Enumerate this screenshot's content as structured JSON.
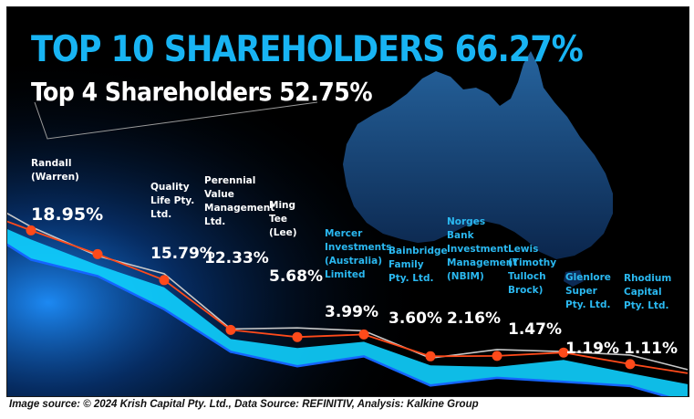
{
  "title": "TOP 10 SHAREHOLDERS 66.27%",
  "subtitle": "Top 4 Shareholders 52.75%",
  "footer": "Image source: © 2024 Krish Capital Pty. Ltd., Data Source: REFINITIV, Analysis: Kalkine Group",
  "colors": {
    "title": "#18b4f3",
    "name_label": "#2ab8f0",
    "name_label_top4": "#ffffff",
    "value_label": "#ffffff",
    "marker": "#ff4a1a",
    "band_fill": "#0fd0ff",
    "band_edge": "#1565ff",
    "series_line": "#ff4a1a",
    "trend_line": "#c8c8c8",
    "map": "#1c4f8a"
  },
  "chart_data": {
    "type": "line",
    "unit": "%",
    "categories": [
      "Randall (Warren)",
      "Quality Life Pty. Ltd.",
      "Perennial Value Management Ltd.",
      "Ming Tee (Lee)",
      "Mercer Investments (Australia) Limited",
      "Bainbridge Family Pty. Ltd.",
      "Norges Bank Investment Management (NBIM)",
      "Lewis (Timothy Tulloch Brock)",
      "Glenlore Super Pty. Ltd.",
      "Rhodium Capital Pty. Ltd."
    ],
    "name_lines": [
      [
        "Randall",
        "(Warren)"
      ],
      [
        "Quality",
        "Life Pty.",
        "Ltd."
      ],
      [
        "Perennial",
        "Value",
        "Management",
        "Ltd."
      ],
      [
        "Ming",
        "Tee",
        "(Lee)"
      ],
      [
        "Mercer",
        "Investments",
        "(Australia)",
        "Limited"
      ],
      [
        "Bainbridge",
        "Family",
        "Pty. Ltd."
      ],
      [
        "Norges",
        "Bank",
        "Investment",
        "Management",
        "(NBIM)"
      ],
      [
        "Lewis",
        "(Timothy",
        "Tulloch",
        "Brock)"
      ],
      [
        "Glenlore",
        "Super",
        "Pty. Ltd."
      ],
      [
        "Rhodium",
        "Capital",
        "Pty. Ltd."
      ]
    ],
    "values": [
      18.95,
      15.79,
      12.33,
      5.68,
      3.99,
      3.6,
      2.16,
      1.47,
      1.19,
      1.11
    ],
    "value_labels": [
      "18.95%",
      "15.79%",
      "12.33%",
      "5.68%",
      "3.99%",
      "3.60%",
      "2.16%",
      "1.47%",
      "1.19%",
      "1.11%"
    ],
    "top4_count": 4,
    "grid": false,
    "legend": "none"
  }
}
